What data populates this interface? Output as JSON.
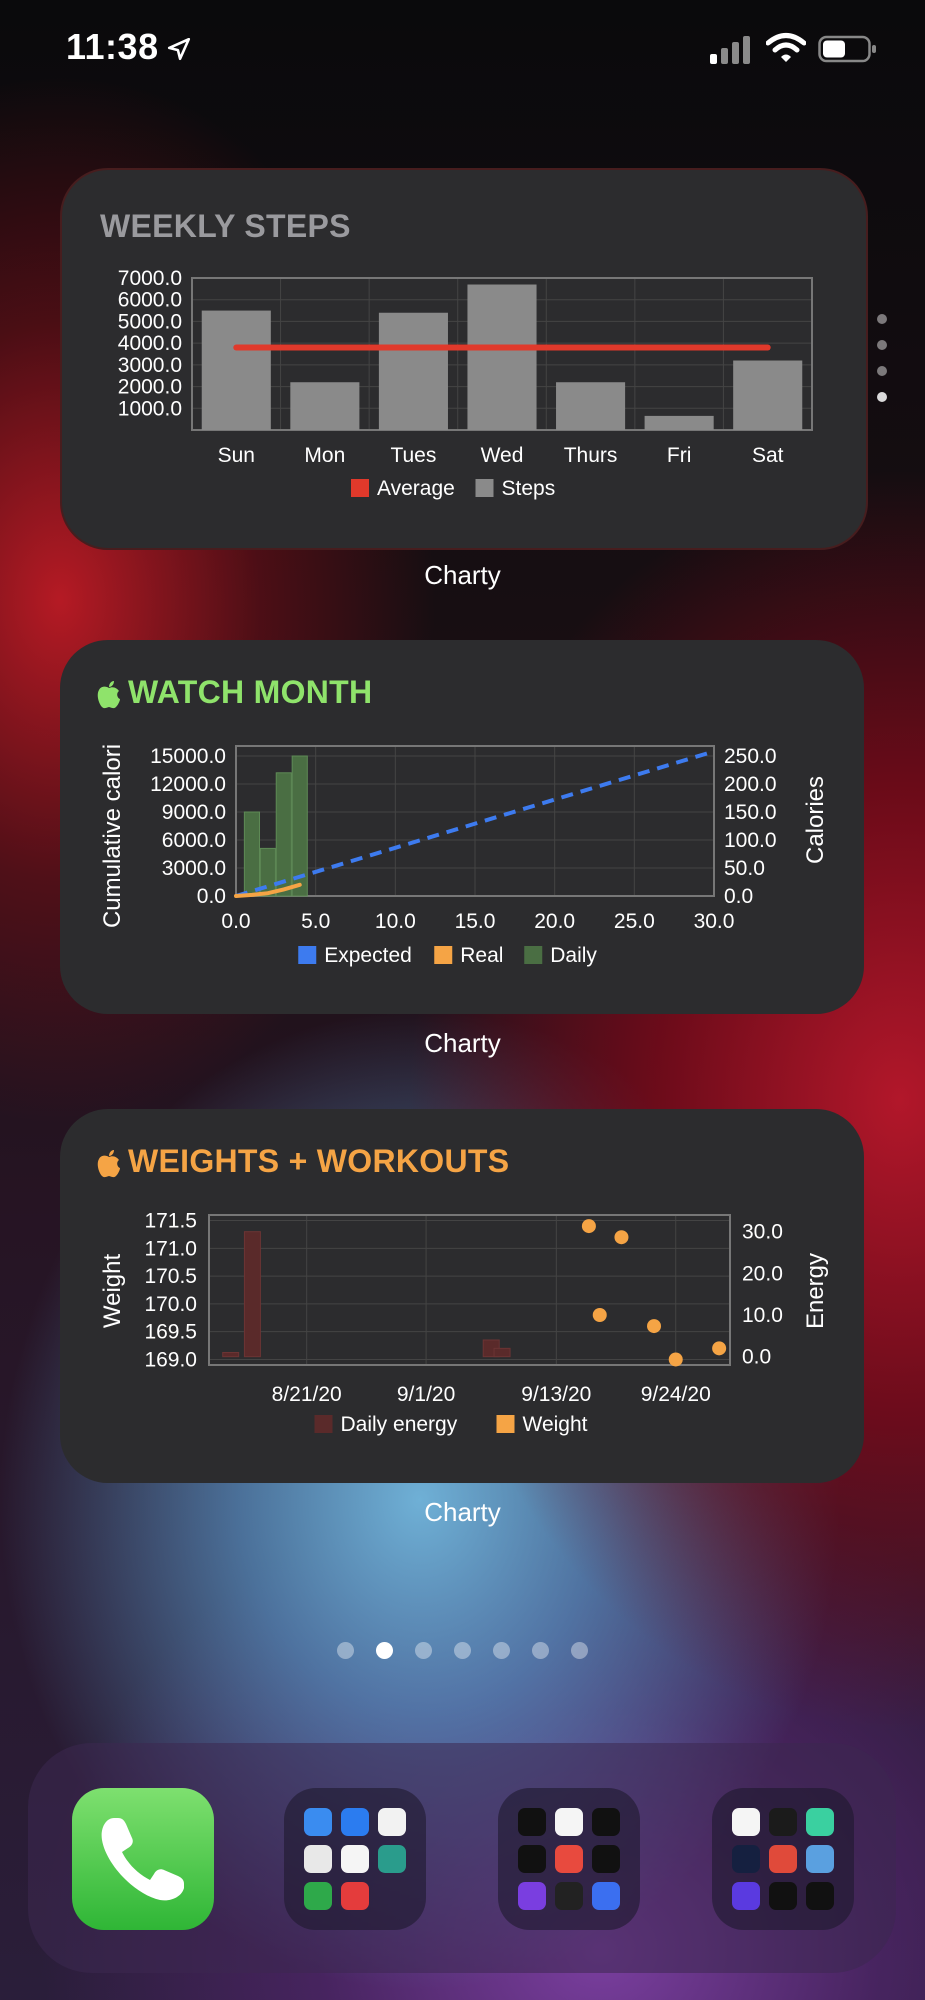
{
  "status": {
    "time": "11:38"
  },
  "widgets": [
    {
      "title": "WEEKLY STEPS",
      "app_label": "Charty",
      "title_color": "#9a9a9e"
    },
    {
      "title": "WATCH MONTH",
      "app_label": "Charty",
      "title_color": "#8fe36b"
    },
    {
      "title": "WEIGHTS + WORKOUTS",
      "app_label": "Charty",
      "title_color": "#f5a445"
    }
  ],
  "chart_data": [
    {
      "type": "bar",
      "categories": [
        "Sun",
        "Mon",
        "Tues",
        "Wed",
        "Thurs",
        "Fri",
        "Sat"
      ],
      "series": [
        {
          "name": "Steps",
          "values": [
            5500,
            2200,
            5400,
            6700,
            2200,
            650,
            3200
          ],
          "color": "#8a8a8a"
        },
        {
          "name": "Average",
          "type": "line",
          "values": [
            3800,
            3800,
            3800,
            3800,
            3800,
            3800,
            3800
          ],
          "color": "#e0392b"
        }
      ],
      "yticks": [
        "7000.0",
        "6000.0",
        "5000.0",
        "4000.0",
        "3000.0",
        "2000.0",
        "1000.0"
      ],
      "ylim": [
        0,
        7000
      ],
      "legend": [
        "Average",
        "Steps"
      ],
      "legend_colors": [
        "#e0392b",
        "#8a8a8a"
      ]
    },
    {
      "type": "line",
      "x_ticks": [
        "0.0",
        "5.0",
        "10.0",
        "15.0",
        "20.0",
        "25.0",
        "30.0"
      ],
      "xlim": [
        0,
        30
      ],
      "y_left_ticks": [
        "15000.0",
        "12000.0",
        "9000.0",
        "6000.0",
        "3000.0",
        "0.0"
      ],
      "y_left_lim": [
        0,
        15000
      ],
      "y_right_ticks": [
        "250.0",
        "200.0",
        "150.0",
        "100.0",
        "50.0",
        "0.0"
      ],
      "y_right_lim": [
        0,
        250
      ],
      "ylabel_left": "Cumulative calori",
      "ylabel_right": "Calories",
      "series": [
        {
          "name": "Expected",
          "type": "line",
          "style": "dashed",
          "color": "#3d7bef",
          "x": [
            0,
            30
          ],
          "y": [
            0,
            15500
          ]
        },
        {
          "name": "Real",
          "type": "line",
          "color": "#f5a445",
          "x": [
            0,
            1,
            2,
            3,
            4
          ],
          "y": [
            0,
            120,
            300,
            700,
            1200
          ]
        },
        {
          "name": "Daily",
          "type": "bar",
          "color": "#4a6e43",
          "axis": "right",
          "x": [
            1,
            2,
            3,
            4
          ],
          "y": [
            150,
            85,
            220,
            250
          ]
        }
      ],
      "legend": [
        "Expected",
        "Real",
        "Daily"
      ],
      "legend_colors": [
        "#3d7bef",
        "#f5a445",
        "#4a6e43"
      ]
    },
    {
      "type": "scatter",
      "x_ticks": [
        "8/21/20",
        "9/1/20",
        "9/13/20",
        "9/24/20"
      ],
      "y_left_ticks": [
        "171.5",
        "171.0",
        "170.5",
        "170.0",
        "169.5",
        "169.0"
      ],
      "y_left_lim": [
        168.9,
        171.6
      ],
      "y_right_ticks": [
        "30.0",
        "20.0",
        "10.0",
        "0.0"
      ],
      "y_right_lim": [
        -2,
        34
      ],
      "ylabel_left": "Weight",
      "ylabel_right": "Energy",
      "xlim_days": [
        -9,
        39
      ],
      "series": [
        {
          "name": "Daily energy",
          "type": "bar",
          "axis": "right",
          "color": "#5a2a2a",
          "x": [
            -7,
            -5,
            17,
            18
          ],
          "y": [
            1,
            30,
            4,
            2
          ]
        },
        {
          "name": "Weight",
          "type": "scatter",
          "color": "#f5a445",
          "x": [
            26,
            29,
            27,
            32,
            34,
            38
          ],
          "y": [
            171.4,
            171.2,
            169.8,
            169.6,
            169.0,
            169.2
          ]
        }
      ],
      "legend": [
        "Daily energy",
        "Weight"
      ],
      "legend_colors": [
        "#5a2a2a",
        "#f5a445"
      ]
    }
  ],
  "page_dots": {
    "count": 7,
    "active": 1
  },
  "dock": [
    "phone-app",
    "folder-utilities",
    "folder-health",
    "folder-fitness"
  ]
}
